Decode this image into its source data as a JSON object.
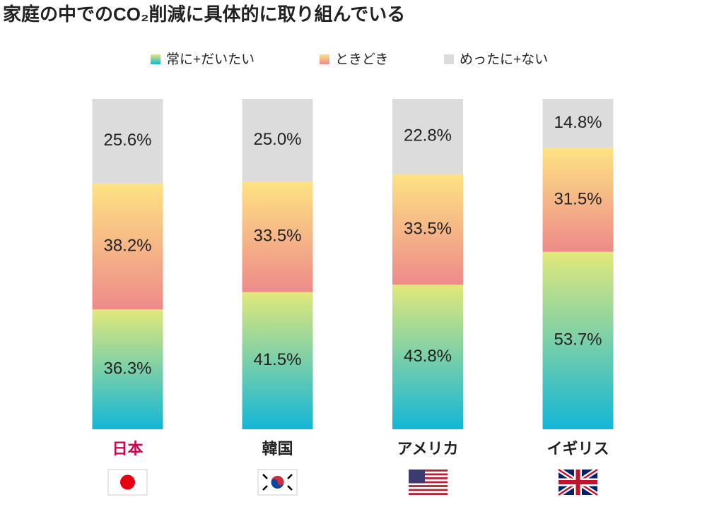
{
  "chart_data": {
    "type": "stacked_bar_100",
    "title": "家庭の中でのCO₂削減に具体的に取り組んでいる",
    "categories": [
      "日本",
      "韓国",
      "アメリカ",
      "イギリス"
    ],
    "category_label_colors": [
      "#d4004f",
      "#222222",
      "#222222",
      "#222222"
    ],
    "series": [
      {
        "name": "常に+だいたい",
        "color": [
          "#13b6d7",
          "#e2e87a"
        ],
        "values": [
          36.3,
          41.5,
          43.8,
          53.7
        ],
        "value_labels": [
          "36.3%",
          "41.5%",
          "43.8%",
          "53.7%"
        ]
      },
      {
        "name": "ときどき",
        "color": [
          "#ee8a8a",
          "#fde383"
        ],
        "values": [
          38.2,
          33.5,
          33.5,
          31.5
        ],
        "value_labels": [
          "38.2%",
          "33.5%",
          "33.5%",
          "31.5%"
        ]
      },
      {
        "name": "めったに+ない",
        "color": [
          "#dcdcdc",
          "#dcdcdc"
        ],
        "values": [
          25.6,
          25.0,
          22.8,
          14.8
        ],
        "value_labels": [
          "25.6%",
          "25.0%",
          "22.8%",
          "14.8%"
        ]
      }
    ]
  }
}
